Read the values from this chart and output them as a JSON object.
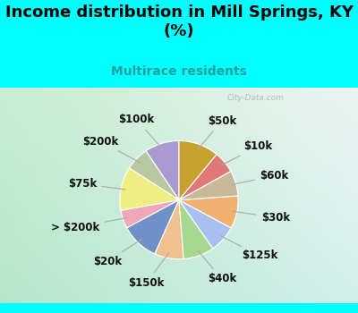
{
  "title": "Income distribution in Mill Springs, KY\n(%)",
  "subtitle": "Multirace residents",
  "labels": [
    "$100k",
    "$200k",
    "$75k",
    "> $200k",
    "$20k",
    "$150k",
    "$40k",
    "$125k",
    "$30k",
    "$60k",
    "$10k",
    "$50k"
  ],
  "values": [
    9.5,
    6.5,
    12.0,
    5.0,
    10.5,
    8.0,
    8.5,
    7.5,
    9.0,
    7.0,
    6.0,
    11.0
  ],
  "colors": [
    "#a89ad0",
    "#b8c8a0",
    "#f0ee80",
    "#f0a8b8",
    "#7090c8",
    "#f0c090",
    "#a8d890",
    "#a8c0f0",
    "#f0b070",
    "#c8b898",
    "#e07878",
    "#c8a030"
  ],
  "bg_color_top": "#00ffff",
  "bg_color_chart_tl": "#c8e8d0",
  "bg_color_chart_tr": "#e8f4f0",
  "bg_color_chart_br": "#d0eeee",
  "title_color": "#000000",
  "subtitle_color": "#20a0a0",
  "watermark": "City-Data.com",
  "startangle": 90,
  "title_fontsize": 13,
  "subtitle_fontsize": 10,
  "label_fontsize": 8.5
}
